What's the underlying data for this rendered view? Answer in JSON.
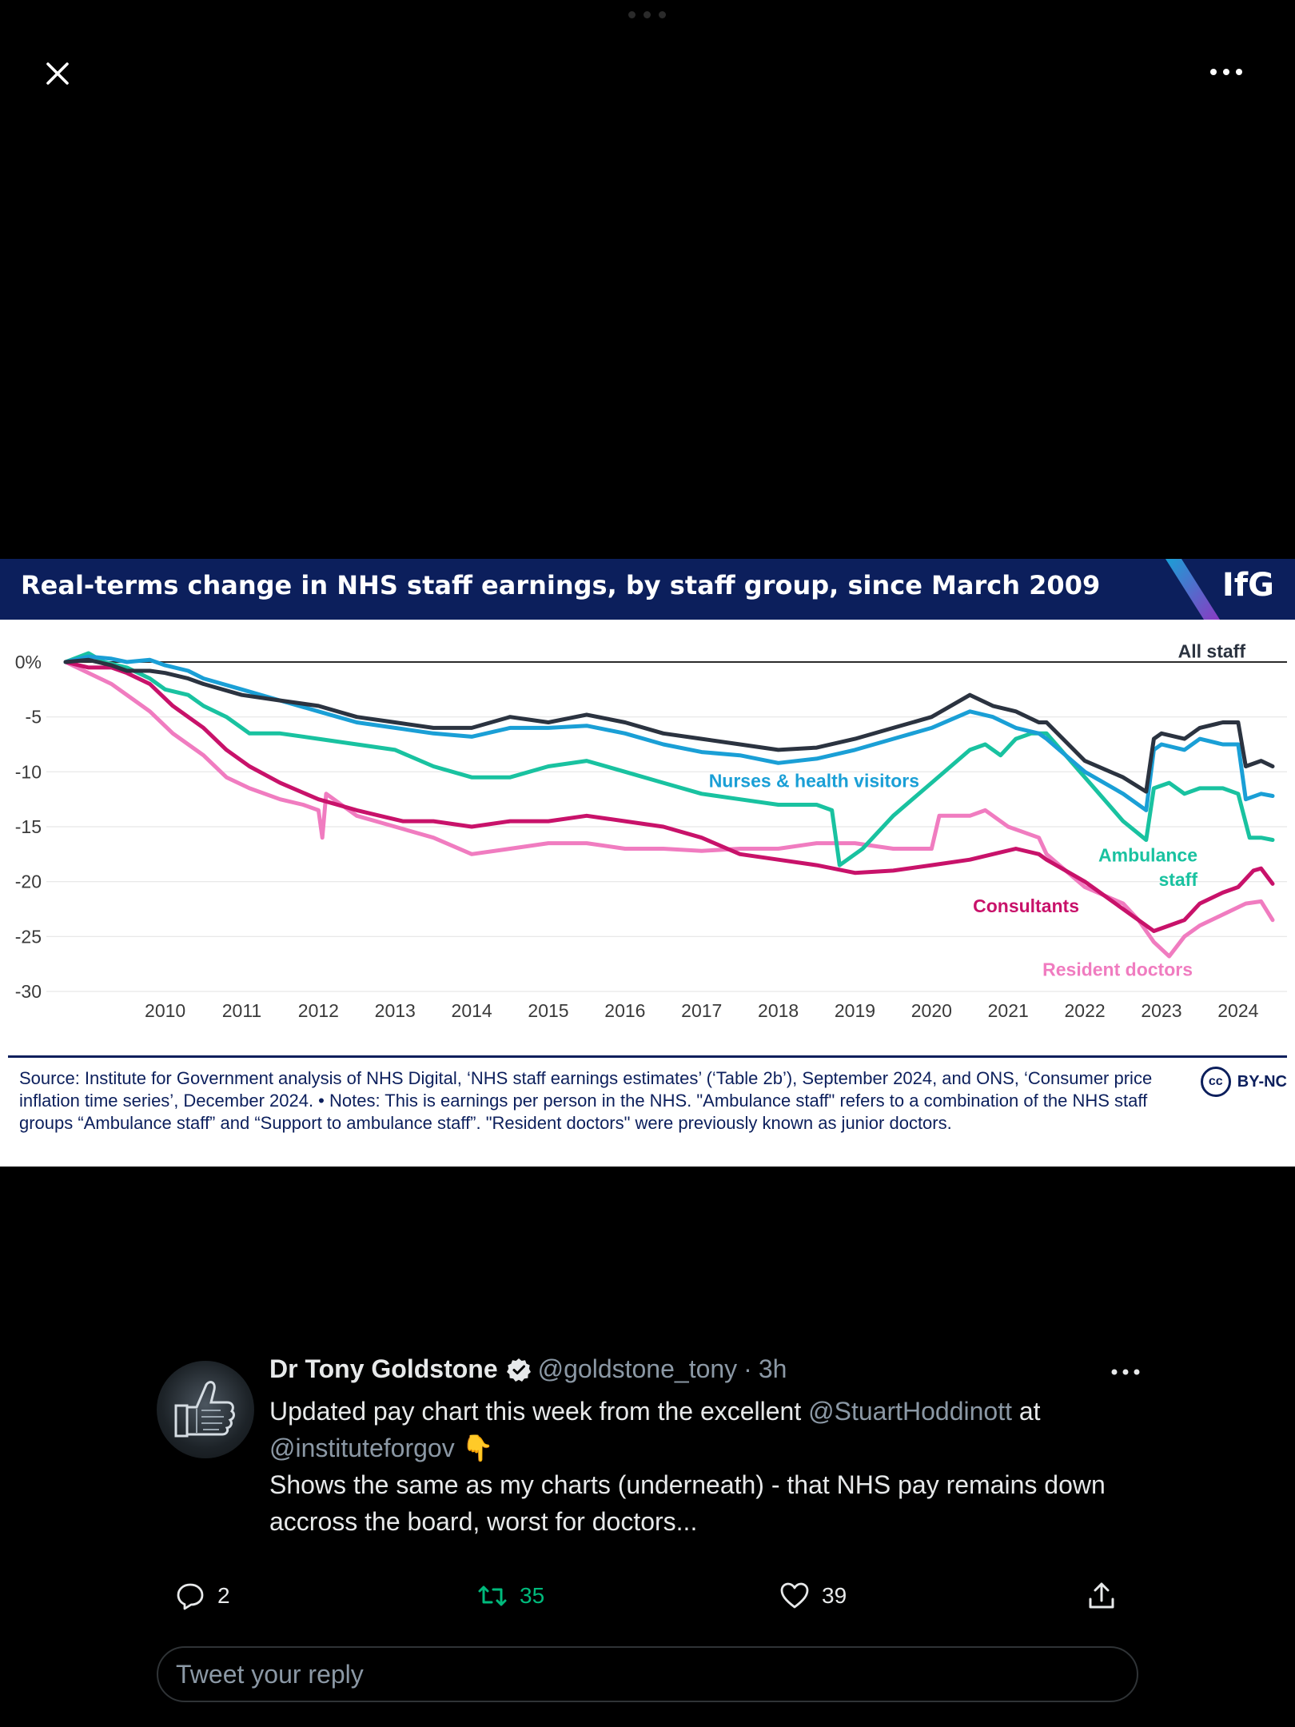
{
  "viewer": {
    "close_icon": "close-icon",
    "more_icon": "more-horizontal-icon"
  },
  "media": {
    "title": "Real-terms change in NHS staff earnings, by staff group, since March 2009",
    "logo": "IfG",
    "source_note": "Source: Institute for Government analysis of NHS Digital, ‘NHS staff earnings estimates’ (‘Table 2b’), September 2024, and ONS, ‘Consumer price inflation time series’, December 2024. • Notes: This is earnings per person in the NHS. \"Ambulance staff\" refers to a combination of the NHS staff groups “Ambulance staff” and “Support to ambulance staff”. \"Resident doctors\" were previously known as junior doctors.",
    "license_badge": "cc",
    "license": "BY-NC",
    "colors": {
      "header_bg": "#0c1f5c",
      "logo_accent_1": "#1a9fd6",
      "logo_accent_2": "#8a3ac2"
    }
  },
  "chart_data": {
    "type": "line",
    "title": "Real-terms change in NHS staff earnings, by staff group, since March 2009",
    "xlabel": "",
    "ylabel": "",
    "ylim": [
      -30,
      1
    ],
    "xlim": [
      2009.2,
      2024.95
    ],
    "y_ticks": [
      "0%",
      "-5",
      "-10",
      "-15",
      "-20",
      "-25",
      "-30"
    ],
    "y_tick_values": [
      0,
      -5,
      -10,
      -15,
      -20,
      -25,
      -30
    ],
    "x_ticks": [
      "2010",
      "2011",
      "2012",
      "2013",
      "2014",
      "2015",
      "2016",
      "2017",
      "2018",
      "2019",
      "2020",
      "2021",
      "2022",
      "2023",
      "2024"
    ],
    "x_tick_values": [
      2010,
      2011,
      2012,
      2013,
      2014,
      2015,
      2016,
      2017,
      2018,
      2019,
      2020,
      2021,
      2022,
      2023,
      2024
    ],
    "grid": "horizontal",
    "series": [
      {
        "name": "All staff",
        "color": "#2b3340",
        "x": [
          2009.2,
          2009.5,
          2009.8,
          2010.0,
          2010.3,
          2010.5,
          2010.8,
          2011.0,
          2011.5,
          2012.0,
          2012.5,
          2013.0,
          2013.5,
          2014.0,
          2014.5,
          2015.0,
          2015.5,
          2016.0,
          2016.5,
          2017.0,
          2017.5,
          2018.0,
          2018.5,
          2019.0,
          2019.5,
          2020.0,
          2020.5,
          2021.0,
          2021.3,
          2021.6,
          2021.9,
          2022.0,
          2022.5,
          2023.0,
          2023.3,
          2023.4,
          2023.5,
          2023.8,
          2024.0,
          2024.3,
          2024.5,
          2024.6,
          2024.8,
          2024.95
        ],
        "values": [
          0,
          0.2,
          -0.3,
          -0.8,
          -0.8,
          -1.0,
          -1.5,
          -2.0,
          -3.0,
          -3.5,
          -4.0,
          -5.0,
          -5.5,
          -6.0,
          -6.0,
          -5.0,
          -5.5,
          -4.8,
          -5.5,
          -6.5,
          -7.0,
          -7.5,
          -8.0,
          -7.8,
          -7.0,
          -6.0,
          -5.0,
          -3.0,
          -4.0,
          -4.5,
          -5.5,
          -5.5,
          -9.0,
          -10.5,
          -11.8,
          -7.0,
          -6.5,
          -7.0,
          -6.0,
          -5.5,
          -5.5,
          -9.5,
          -9.0,
          -9.5
        ]
      },
      {
        "name": "Nurses & health visitors",
        "color": "#1a9fd6",
        "x": [
          2009.2,
          2009.5,
          2009.8,
          2010.0,
          2010.3,
          2010.5,
          2010.8,
          2011.0,
          2011.5,
          2012.0,
          2012.5,
          2013.0,
          2013.5,
          2014.0,
          2014.5,
          2015.0,
          2015.5,
          2016.0,
          2016.5,
          2017.0,
          2017.5,
          2018.0,
          2018.5,
          2019.0,
          2019.5,
          2020.0,
          2020.5,
          2021.0,
          2021.3,
          2021.6,
          2021.9,
          2022.0,
          2022.5,
          2023.0,
          2023.3,
          2023.4,
          2023.5,
          2023.8,
          2024.0,
          2024.3,
          2024.5,
          2024.6,
          2024.8,
          2024.95
        ],
        "values": [
          0,
          0.5,
          0.3,
          0.0,
          0.2,
          -0.3,
          -0.8,
          -1.5,
          -2.5,
          -3.5,
          -4.5,
          -5.5,
          -6.0,
          -6.5,
          -6.8,
          -6.0,
          -6.0,
          -5.8,
          -6.5,
          -7.5,
          -8.2,
          -8.5,
          -9.2,
          -8.8,
          -8.0,
          -7.0,
          -6.0,
          -4.5,
          -5.0,
          -6.0,
          -6.5,
          -7.0,
          -10.0,
          -12.0,
          -13.5,
          -8.0,
          -7.5,
          -8.0,
          -7.0,
          -7.5,
          -7.5,
          -12.5,
          -12.0,
          -12.2
        ]
      },
      {
        "name": "Ambulance staff",
        "color": "#19c2a0",
        "x": [
          2009.2,
          2009.5,
          2009.7,
          2010.0,
          2010.3,
          2010.5,
          2010.8,
          2011.0,
          2011.3,
          2011.6,
          2012.0,
          2012.5,
          2013.0,
          2013.5,
          2014.0,
          2014.5,
          2015.0,
          2015.5,
          2016.0,
          2016.5,
          2017.0,
          2017.5,
          2018.0,
          2018.5,
          2019.0,
          2019.2,
          2019.3,
          2019.6,
          2020.0,
          2020.5,
          2021.0,
          2021.2,
          2021.4,
          2021.6,
          2021.8,
          2022.0,
          2022.5,
          2023.0,
          2023.3,
          2023.4,
          2023.6,
          2023.8,
          2024.0,
          2024.3,
          2024.5,
          2024.65,
          2024.8,
          2024.95
        ],
        "values": [
          0,
          0.8,
          0.0,
          -0.5,
          -1.5,
          -2.5,
          -3.0,
          -4.0,
          -5.0,
          -6.5,
          -6.5,
          -7.0,
          -7.5,
          -8.0,
          -9.5,
          -10.5,
          -10.5,
          -9.5,
          -9.0,
          -10.0,
          -11.0,
          -12.0,
          -12.5,
          -13.0,
          -13.0,
          -13.5,
          -18.5,
          -17.0,
          -14.0,
          -11.0,
          -8.0,
          -7.5,
          -8.5,
          -7.0,
          -6.5,
          -6.5,
          -10.5,
          -14.5,
          -16.2,
          -11.5,
          -11.0,
          -12.0,
          -11.5,
          -11.5,
          -12.0,
          -16.0,
          -16.0,
          -16.2
        ]
      },
      {
        "name": "Consultants",
        "color": "#c8126a",
        "x": [
          2009.2,
          2009.5,
          2009.8,
          2010.0,
          2010.3,
          2010.6,
          2011.0,
          2011.3,
          2011.6,
          2012.0,
          2012.5,
          2013.0,
          2013.3,
          2013.6,
          2014.0,
          2014.5,
          2015.0,
          2015.5,
          2016.0,
          2016.5,
          2017.0,
          2017.5,
          2018.0,
          2018.5,
          2019.0,
          2019.5,
          2020.0,
          2020.5,
          2021.0,
          2021.3,
          2021.6,
          2021.9,
          2022.0,
          2022.5,
          2023.0,
          2023.4,
          2023.6,
          2023.8,
          2024.0,
          2024.3,
          2024.5,
          2024.7,
          2024.8,
          2024.95
        ],
        "values": [
          0,
          -0.5,
          -0.5,
          -1.0,
          -2.0,
          -4.0,
          -6.0,
          -8.0,
          -9.5,
          -11.0,
          -12.5,
          -13.5,
          -14.0,
          -14.5,
          -14.5,
          -15.0,
          -14.5,
          -14.5,
          -14.0,
          -14.5,
          -15.0,
          -16.0,
          -17.5,
          -18.0,
          -18.5,
          -19.2,
          -19.0,
          -18.5,
          -18.0,
          -17.5,
          -17.0,
          -17.5,
          -18.0,
          -20.0,
          -22.5,
          -24.5,
          -24.0,
          -23.5,
          -22.0,
          -21.0,
          -20.5,
          -19.0,
          -18.8,
          -20.2
        ]
      },
      {
        "name": "Resident doctors",
        "color": "#f07cc0",
        "x": [
          2009.2,
          2009.5,
          2009.8,
          2010.0,
          2010.3,
          2010.6,
          2011.0,
          2011.3,
          2011.6,
          2012.0,
          2012.3,
          2012.5,
          2012.55,
          2012.6,
          2013.0,
          2013.5,
          2014.0,
          2014.5,
          2015.0,
          2015.5,
          2016.0,
          2016.5,
          2017.0,
          2017.5,
          2018.0,
          2018.5,
          2019.0,
          2019.5,
          2020.0,
          2020.5,
          2020.6,
          2021.0,
          2021.2,
          2021.5,
          2021.9,
          2022.0,
          2022.5,
          2023.0,
          2023.2,
          2023.4,
          2023.6,
          2023.8,
          2024.0,
          2024.3,
          2024.6,
          2024.8,
          2024.95
        ],
        "values": [
          0,
          -1.0,
          -2.0,
          -3.0,
          -4.5,
          -6.5,
          -8.5,
          -10.5,
          -11.5,
          -12.5,
          -13.0,
          -13.5,
          -16.0,
          -12.0,
          -14.0,
          -15.0,
          -16.0,
          -17.5,
          -17.0,
          -16.5,
          -16.5,
          -17.0,
          -17.0,
          -17.2,
          -17.0,
          -17.0,
          -16.5,
          -16.5,
          -17.0,
          -17.0,
          -14.0,
          -14.0,
          -13.5,
          -15.0,
          -16.0,
          -17.5,
          -20.5,
          -22.0,
          -23.5,
          -25.5,
          -26.8,
          -25.0,
          -24.0,
          -23.0,
          -22.0,
          -21.8,
          -23.5
        ]
      }
    ],
    "annotations": [
      {
        "text": "All staff",
        "series": "All staff"
      },
      {
        "text": "Nurses & health visitors",
        "series": "Nurses & health visitors"
      },
      {
        "text": "Ambulance",
        "series": "Ambulance staff"
      },
      {
        "text": "staff",
        "series": "Ambulance staff"
      },
      {
        "text": "Consultants",
        "series": "Consultants"
      },
      {
        "text": "Resident doctors",
        "series": "Resident doctors"
      }
    ]
  },
  "tweet": {
    "author_name": "Dr Tony Goldstone",
    "verified_icon": "verified-badge-icon",
    "handle": "@goldstone_tony",
    "separator": "·",
    "time": "3h",
    "text_part1": "Updated pay chart this week from the excellent ",
    "mention1": "@StuartHoddinott",
    "text_part2": " at",
    "mention2": "@instituteforgov",
    "emoji": "👇",
    "line2": "Shows the same as my charts (underneath) - that NHS pay remains down accross the board, worst for doctors...",
    "more_icon": "more-horizontal-icon"
  },
  "actions": {
    "reply_count": "2",
    "retweet_count": "35",
    "like_count": "39",
    "retweet_color": "#00ba7c"
  },
  "reply": {
    "placeholder": "Tweet your reply"
  }
}
